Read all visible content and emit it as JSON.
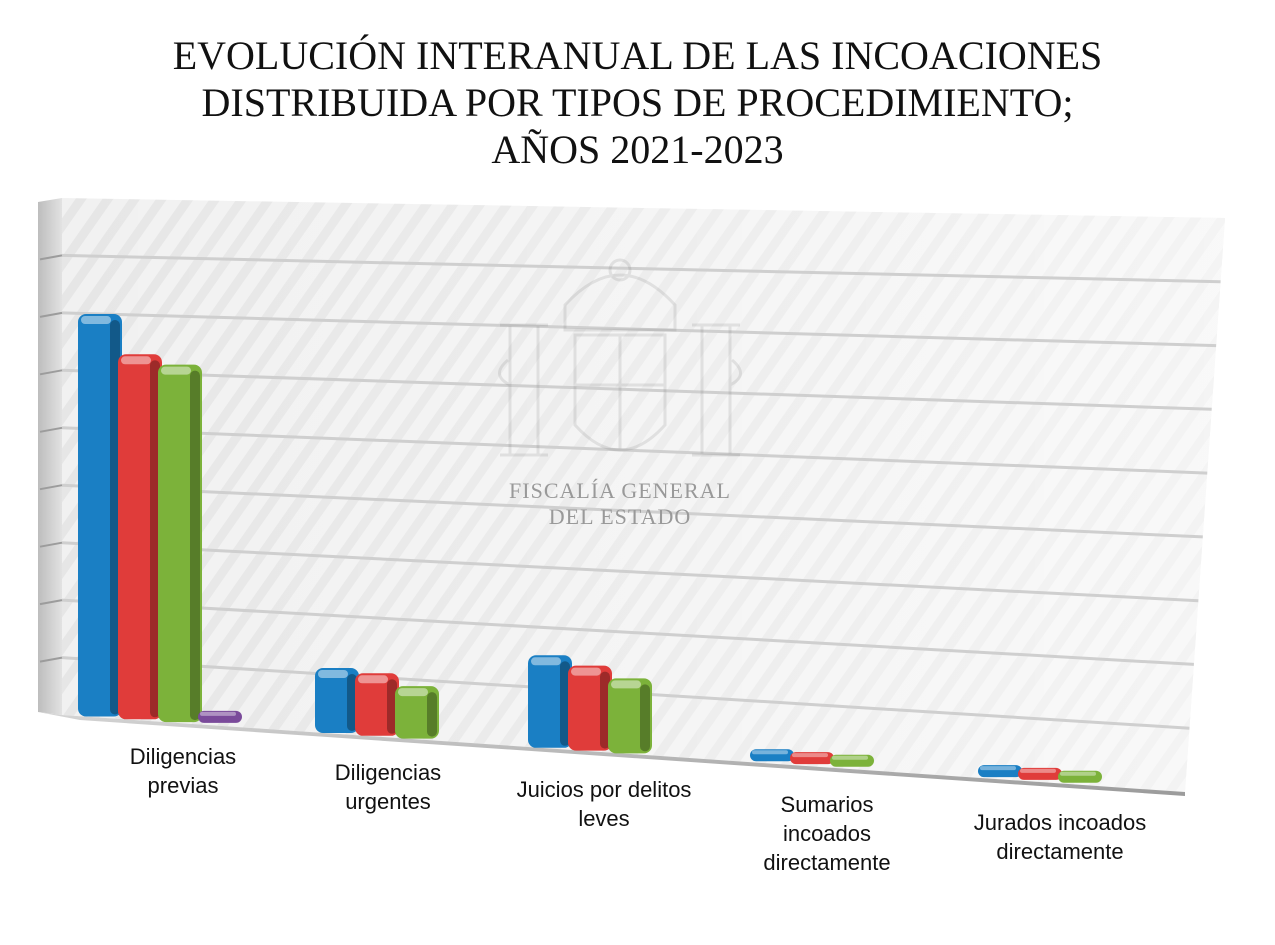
{
  "title_lines": [
    "EVOLUCIÓN INTERANUAL DE LAS INCOACIONES",
    "DISTRIBUIDA POR TIPOS DE PROCEDIMIENTO;",
    "AÑOS 2021-2023"
  ],
  "watermark": {
    "lines": [
      "FISCALÍA GENERAL",
      "DEL ESTADO"
    ]
  },
  "chart_data": {
    "type": "bar",
    "title": "EVOLUCIÓN INTERANUAL DE LAS INCOACIONES DISTRIBUIDA POR TIPOS DE PROCEDIMIENTO; AÑOS 2021-2023",
    "categories": [
      "Diligencias previas",
      "Diligencias urgentes",
      "Juicios por delitos leves",
      "Sumarios incoados directamente",
      "Jurados incoados directamente"
    ],
    "category_label_lines": [
      [
        "Diligencias",
        "previas"
      ],
      [
        "Diligencias",
        "urgentes"
      ],
      [
        "Juicios por delitos",
        "leves"
      ],
      [
        "Sumarios",
        "incoados",
        "directamente"
      ],
      [
        "Jurados incoados",
        "directamente"
      ]
    ],
    "series": [
      {
        "color": "#1a7fc4",
        "values": [
          8.05,
          1.3,
          1.85,
          0.05,
          0.05
        ]
      },
      {
        "color": "#e03c3a",
        "values": [
          7.3,
          1.25,
          1.7,
          0.04,
          0.04
        ]
      },
      {
        "color": "#7cb23a",
        "values": [
          7.15,
          1.05,
          1.5,
          0.03,
          0.03
        ]
      },
      {
        "color": "#7a4a9a",
        "values": [
          0.04,
          null,
          null,
          null,
          null
        ]
      }
    ],
    "ylim": [
      0,
      9
    ],
    "grid": true,
    "legend": "none",
    "xlabel": "",
    "ylabel": ""
  }
}
